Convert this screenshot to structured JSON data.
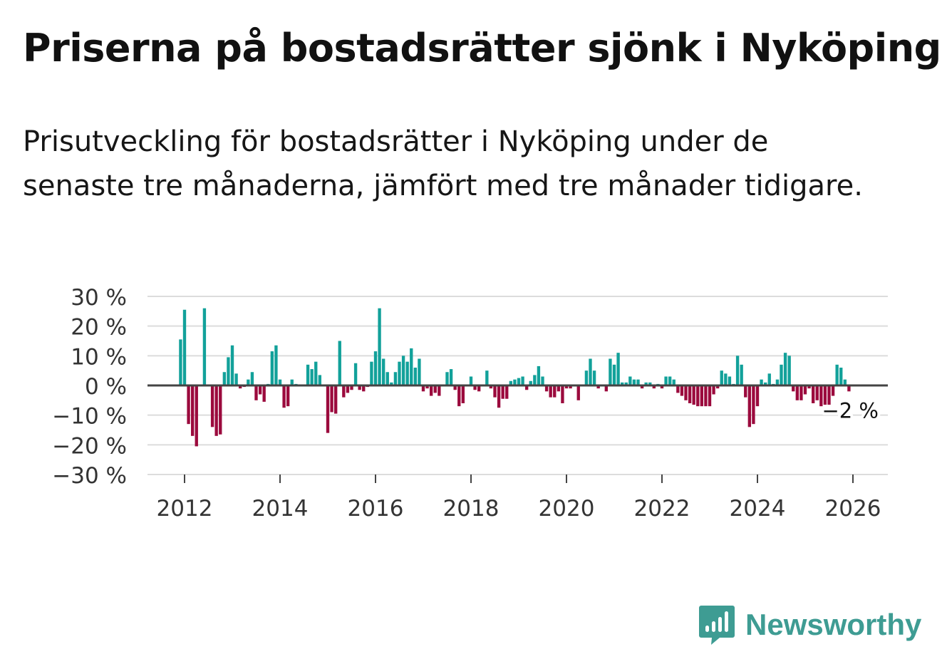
{
  "title": "Priserna på bostadsrätter sjönk i Nyköping",
  "subtitle": "Prisutveckling för bostadsrätter i Nyköping under de senaste tre månaderna, jämfört med tre månader tidigare.",
  "brand": {
    "name": "Newsworthy",
    "color": "#3e9c93",
    "icon": "newsworthy-logo-icon"
  },
  "colors": {
    "positive": "#12a19a",
    "negative": "#9b0a3d",
    "grid": "#dcdcdc",
    "zero": "#444444"
  },
  "chart_data": {
    "type": "bar",
    "title": "",
    "xlabel": "",
    "ylabel": "",
    "ylim": [
      -30,
      30
    ],
    "y_ticks": [
      30,
      20,
      10,
      0,
      -10,
      -20,
      -30
    ],
    "y_tick_labels": [
      "30 %",
      "20 %",
      "10 %",
      "0 %",
      "−10 %",
      "−20 %",
      "−30 %"
    ],
    "x_ticks": [
      2012,
      2014,
      2016,
      2018,
      2020,
      2022,
      2024,
      2026
    ],
    "x_tick_labels": [
      "2012",
      "2014",
      "2016",
      "2018",
      "2020",
      "2022",
      "2024",
      "2026"
    ],
    "start": {
      "year": 2011,
      "month": 12
    },
    "frequency": "monthly",
    "last_value_label": "−2 %",
    "values": [
      15.5,
      25.5,
      -13.0,
      -17.0,
      -20.5,
      0,
      26.0,
      0,
      -14.0,
      -17.0,
      -16.5,
      4.5,
      9.5,
      13.5,
      4.0,
      -1.0,
      -0.5,
      2.0,
      4.5,
      -5.0,
      -3.0,
      -5.5,
      0.5,
      11.5,
      13.5,
      2.0,
      -7.5,
      -7.0,
      2.0,
      0.5,
      0,
      0,
      7.0,
      5.5,
      8.0,
      3.5,
      0,
      -16.0,
      -9.0,
      -9.5,
      15.0,
      -4.0,
      -2.5,
      -1.5,
      7.5,
      -1.5,
      -2.0,
      -0.5,
      8.0,
      11.5,
      26.0,
      9.0,
      4.5,
      1.0,
      4.5,
      8.0,
      10.0,
      8.0,
      12.5,
      6.0,
      9.0,
      -2.0,
      -1.0,
      -3.5,
      -2.5,
      -3.5,
      0,
      4.5,
      5.5,
      -1.5,
      -7.0,
      -6.0,
      0,
      3.0,
      -1.5,
      -2.0,
      0,
      5.0,
      -1.0,
      -4.0,
      -7.5,
      -4.5,
      -4.5,
      1.5,
      2.0,
      2.5,
      3.0,
      -1.5,
      1.5,
      3.5,
      6.5,
      3.0,
      -2.0,
      -4.0,
      -4.0,
      -2.0,
      -6.0,
      -1.0,
      -1.0,
      0,
      -5.0,
      0,
      5.0,
      9.0,
      5.0,
      -1.0,
      0,
      -2.0,
      9.0,
      7.0,
      11.0,
      1.0,
      1.0,
      3.0,
      2.0,
      2.0,
      -1.0,
      1.0,
      1.0,
      -1.0,
      0.5,
      -1.0,
      3.0,
      3.0,
      2.0,
      -2.5,
      -3.5,
      -5.0,
      -6.0,
      -6.5,
      -7.0,
      -7.0,
      -7.0,
      -7.0,
      -3.0,
      -1.0,
      5.0,
      4.0,
      3.0,
      0.5,
      10.0,
      7.0,
      -4.0,
      -14.0,
      -13.0,
      -7.0,
      2.0,
      1.0,
      4.0,
      0.5,
      2.0,
      7.0,
      11.0,
      10.0,
      -2.0,
      -5.0,
      -5.0,
      -3.0,
      -1.0,
      -6.0,
      -5.0,
      -7.0,
      -6.5,
      -6.5,
      -3.5,
      7.0,
      6.0,
      2.0,
      -2.0
    ]
  }
}
